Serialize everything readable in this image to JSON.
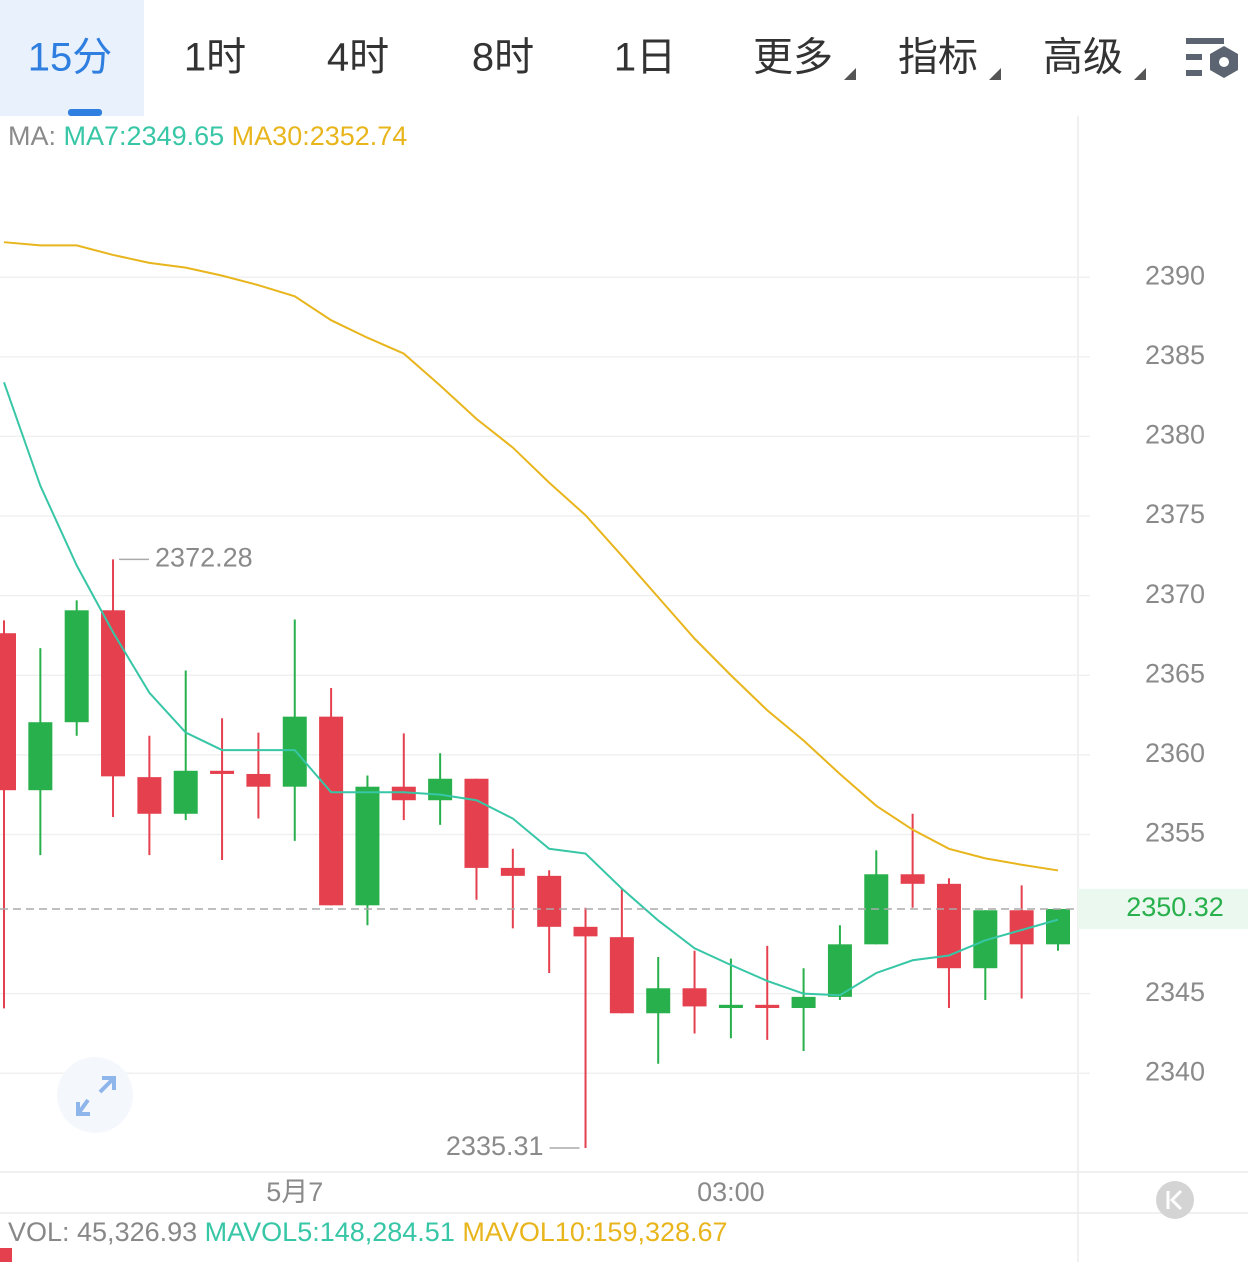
{
  "tabs": [
    "15分",
    "1时",
    "4时",
    "8时",
    "1日",
    "更多",
    "指标",
    "高级"
  ],
  "chart_data": {
    "type": "candlestick",
    "ma_label": "MA:",
    "categories": [
      null,
      null,
      null,
      null,
      null,
      null,
      null,
      null,
      "5月7",
      null,
      null,
      null,
      null,
      null,
      null,
      null,
      null,
      null,
      null,
      null,
      "03:00",
      null,
      null,
      null,
      null,
      null,
      null,
      null,
      null,
      null
    ],
    "open": [
      2367.64,
      2357.78,
      2362.05,
      2369.08,
      2358.6,
      2356.3,
      2359.0,
      2358.8,
      2358.0,
      2362.4,
      2350.55,
      2358.0,
      2357.15,
      2358.5,
      2352.9,
      2352.4,
      2349.2,
      2348.55,
      2343.77,
      2345.34,
      2344.1,
      2344.3,
      2344.1,
      2344.8,
      2348.1,
      2352.5,
      2351.9,
      2346.6,
      2350.24,
      2348.1
    ],
    "high": [
      2368.45,
      2366.7,
      2369.7,
      2372.28,
      2361.2,
      2365.3,
      2362.3,
      2361.4,
      2368.5,
      2364.2,
      2358.7,
      2361.35,
      2360.1,
      2358.5,
      2354.1,
      2352.75,
      2350.4,
      2351.6,
      2347.3,
      2347.7,
      2347.2,
      2348.0,
      2346.6,
      2349.3,
      2354.0,
      2356.3,
      2352.25,
      2350.24,
      2351.8,
      2350.32
    ],
    "low": [
      2344.08,
      2353.7,
      2361.2,
      2356.1,
      2353.7,
      2355.9,
      2353.4,
      2356.0,
      2354.6,
      2350.55,
      2349.3,
      2355.9,
      2355.6,
      2350.9,
      2349.1,
      2346.3,
      2335.31,
      2343.77,
      2340.6,
      2342.5,
      2342.2,
      2342.1,
      2341.4,
      2344.6,
      2348.1,
      2350.4,
      2344.1,
      2344.6,
      2344.7,
      2347.7
    ],
    "close": [
      2357.78,
      2362.05,
      2369.08,
      2358.65,
      2356.3,
      2359.0,
      2358.8,
      2358.0,
      2362.4,
      2350.55,
      2358.0,
      2357.15,
      2358.5,
      2352.9,
      2352.4,
      2349.2,
      2348.6,
      2343.77,
      2345.34,
      2344.2,
      2344.3,
      2344.1,
      2344.8,
      2348.1,
      2352.5,
      2351.9,
      2346.6,
      2350.24,
      2348.1,
      2350.32
    ],
    "up_color": "#27b04b",
    "down_color": "#e5404e",
    "series": [
      {
        "name": "MA7:2349.65",
        "color": "#37c6a6",
        "values": [
          2383.4,
          2376.9,
          2371.9,
          2367.7,
          2363.9,
          2361.4,
          2360.3,
          2360.3,
          2360.3,
          2357.65,
          2357.65,
          2357.65,
          2357.5,
          2357.15,
          2356.0,
          2354.1,
          2353.8,
          2351.6,
          2349.6,
          2347.85,
          2346.8,
          2345.8,
          2345.0,
          2344.9,
          2346.3,
          2347.1,
          2347.4,
          2348.35,
          2349.0,
          2349.65
        ]
      },
      {
        "name": "MA30:2352.74",
        "color": "#e8b51c",
        "values": [
          2392.2,
          2392.0,
          2392.0,
          2391.4,
          2390.9,
          2390.6,
          2390.1,
          2389.5,
          2388.8,
          2387.3,
          2386.2,
          2385.2,
          2383.2,
          2381.1,
          2379.3,
          2377.1,
          2375.05,
          2372.5,
          2369.9,
          2367.3,
          2365.0,
          2362.8,
          2360.9,
          2358.8,
          2356.8,
          2355.3,
          2354.1,
          2353.5,
          2353.1,
          2352.74
        ]
      }
    ],
    "ylim": [
      2333.8,
      2400
    ],
    "yticks": [
      2340,
      2345,
      2355,
      2360,
      2365,
      2370,
      2375,
      2380,
      2385,
      2390
    ],
    "grid": true,
    "vol_legend": [
      {
        "text": "VOL: 45,326.93",
        "color": "#888888"
      },
      {
        "text": "MAVOL5:148,284.51",
        "color": "#37c6a6"
      },
      {
        "text": "MAVOL10:159,328.67",
        "color": "#e8b51c"
      }
    ]
  }
}
